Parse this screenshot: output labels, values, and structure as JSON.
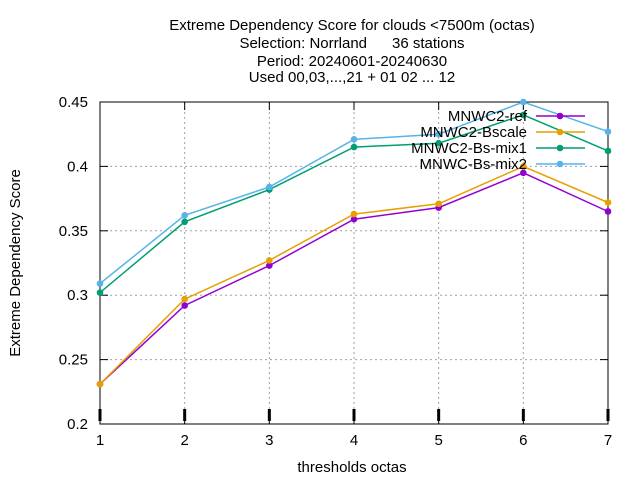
{
  "chart_data": {
    "type": "line",
    "title_lines": [
      "Extreme Dependency Score  for clouds <7500m (octas)",
      "Selection: Norrland      36 stations",
      "Period: 20240601-20240630",
      "Used 00,03,...,21 + 01 02 ... 12"
    ],
    "xlabel": "thresholds octas",
    "ylabel": "Extreme Dependency Score",
    "x": [
      1,
      2,
      3,
      4,
      5,
      6,
      7
    ],
    "xlim": [
      1,
      7
    ],
    "ylim": [
      0.2,
      0.45
    ],
    "xticks": [
      "1",
      "2",
      "3",
      "4",
      "5",
      "6",
      "7"
    ],
    "yticks": [
      "0.2",
      "0.25",
      "0.3",
      "0.35",
      "0.4",
      "0.45"
    ],
    "grid": true,
    "legend_position": "top-right",
    "series": [
      {
        "name": "MNWC2-ref",
        "color": "#9400d3",
        "values": [
          0.231,
          0.292,
          0.323,
          0.359,
          0.368,
          0.395,
          0.365
        ]
      },
      {
        "name": "MNWC2-Bscale",
        "color": "#e6a000",
        "values": [
          0.231,
          0.297,
          0.327,
          0.363,
          0.371,
          0.4,
          0.372
        ]
      },
      {
        "name": "MNWC2-Bs-mix1",
        "color": "#009e73",
        "values": [
          0.302,
          0.357,
          0.382,
          0.415,
          0.418,
          0.44,
          0.412
        ]
      },
      {
        "name": "MNWC-Bs-mix2",
        "color": "#56b4e9",
        "values": [
          0.309,
          0.362,
          0.384,
          0.421,
          0.425,
          0.45,
          0.427
        ]
      }
    ]
  }
}
